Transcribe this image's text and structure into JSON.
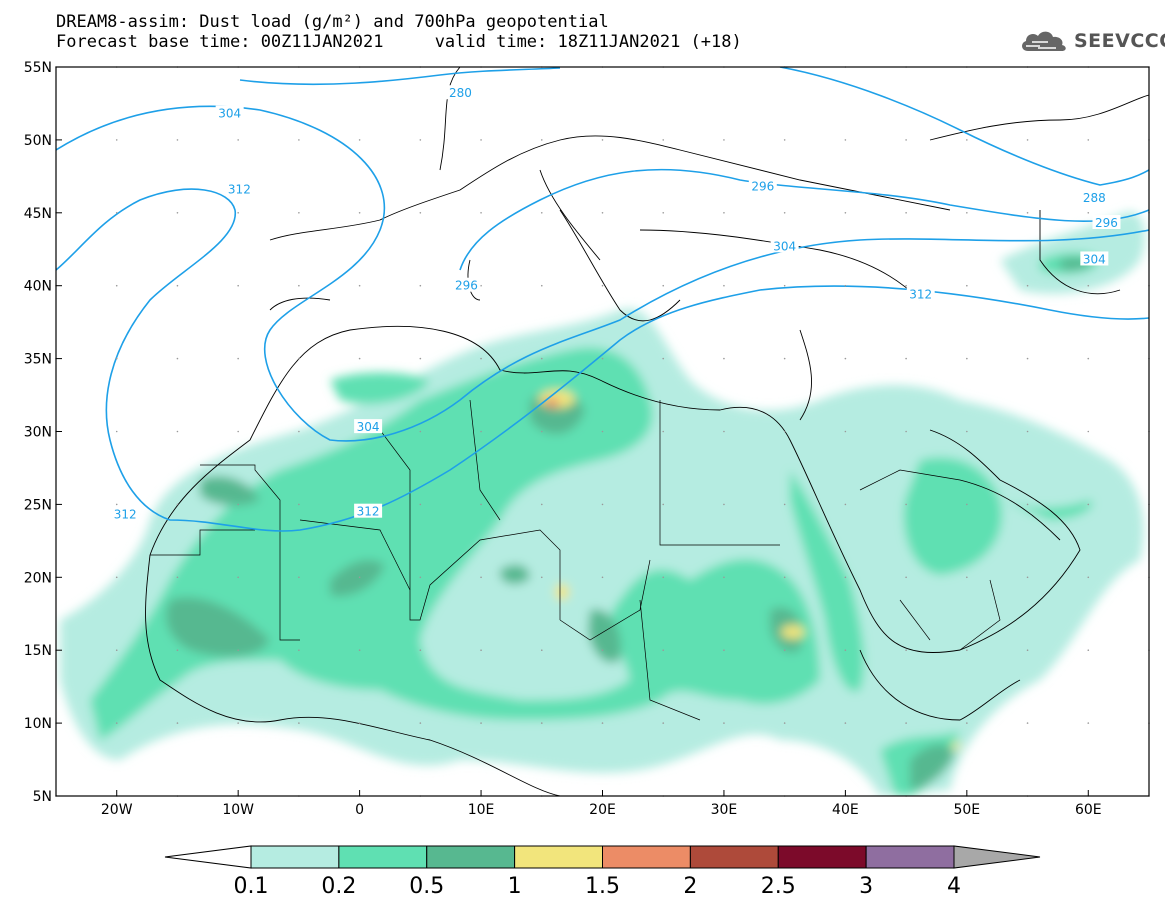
{
  "header": {
    "title_line1": "DREAM8-assim: Dust load (g/m²) and 700hPa geopotential",
    "title_line2": "Forecast base time: 00Z11JAN2021     valid time: 18Z11JAN2021 (+18)"
  },
  "logo": {
    "text": "SEEVCCC",
    "icon": "cloud-icon"
  },
  "map": {
    "lon_range": [
      -25,
      65
    ],
    "lat_range": [
      5,
      55
    ],
    "lon_ticks": [
      {
        "value": -20,
        "label": "20W"
      },
      {
        "value": -10,
        "label": "10W"
      },
      {
        "value": 0,
        "label": "0"
      },
      {
        "value": 10,
        "label": "10E"
      },
      {
        "value": 20,
        "label": "20E"
      },
      {
        "value": 30,
        "label": "30E"
      },
      {
        "value": 40,
        "label": "40E"
      },
      {
        "value": 50,
        "label": "50E"
      },
      {
        "value": 60,
        "label": "60E"
      }
    ],
    "lat_ticks": [
      {
        "value": 55,
        "label": "55N"
      },
      {
        "value": 50,
        "label": "50N"
      },
      {
        "value": 45,
        "label": "45N"
      },
      {
        "value": 40,
        "label": "40N"
      },
      {
        "value": 35,
        "label": "35N"
      },
      {
        "value": 30,
        "label": "30N"
      },
      {
        "value": 25,
        "label": "25N"
      },
      {
        "value": 20,
        "label": "20N"
      },
      {
        "value": 15,
        "label": "15N"
      },
      {
        "value": 10,
        "label": "10N"
      },
      {
        "value": 5,
        "label": "5N"
      }
    ],
    "contour_color": "#1ea0e8",
    "contour_labels": [
      {
        "text": "280",
        "lon": 8.3,
        "lat": 53.2
      },
      {
        "text": "304",
        "lon": -10.7,
        "lat": 51.8
      },
      {
        "text": "312",
        "lon": -9.9,
        "lat": 46.6
      },
      {
        "text": "296",
        "lon": 33.2,
        "lat": 46.8
      },
      {
        "text": "288",
        "lon": 60.5,
        "lat": 46.0
      },
      {
        "text": "296",
        "lon": 61.5,
        "lat": 44.3
      },
      {
        "text": "304",
        "lon": 60.5,
        "lat": 41.8
      },
      {
        "text": "304",
        "lon": 35.0,
        "lat": 42.7
      },
      {
        "text": "312",
        "lon": 46.2,
        "lat": 39.4
      },
      {
        "text": "296",
        "lon": 8.8,
        "lat": 40.0
      },
      {
        "text": "304",
        "lon": 0.7,
        "lat": 30.3
      },
      {
        "text": "312",
        "lon": 0.7,
        "lat": 24.5
      },
      {
        "text": "312",
        "lon": -19.3,
        "lat": 24.3
      }
    ]
  },
  "colorbar": {
    "bins": [
      {
        "color": "#ffffff"
      },
      {
        "color": "#b5ece1"
      },
      {
        "color": "#5fe0b2"
      },
      {
        "color": "#57b890"
      },
      {
        "color": "#f2e57c"
      },
      {
        "color": "#ec8c66"
      },
      {
        "color": "#ae4a3a"
      },
      {
        "color": "#7c0a2a"
      },
      {
        "color": "#8f6ea0"
      },
      {
        "color": "#a8a8a8"
      }
    ],
    "labels": [
      "0.1",
      "0.2",
      "0.5",
      "1",
      "1.5",
      "2",
      "2.5",
      "3",
      "4"
    ]
  }
}
